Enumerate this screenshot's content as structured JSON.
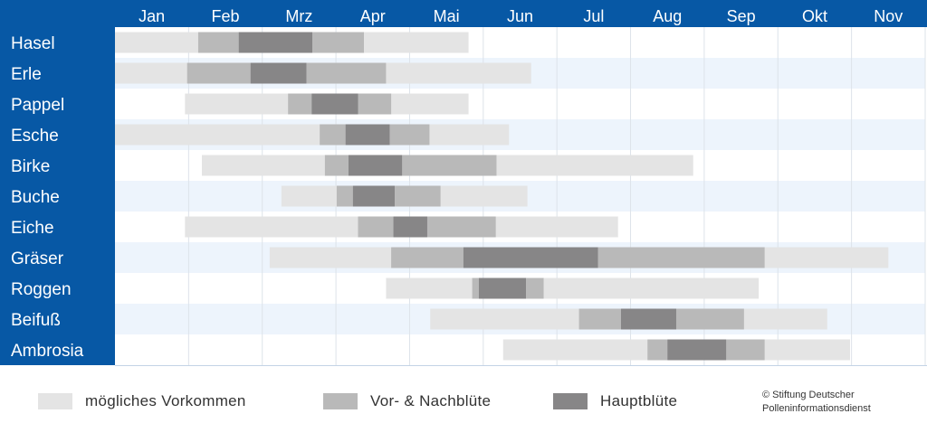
{
  "colors": {
    "header": "#0758a5",
    "row_alt": "#edf4fc",
    "grid": "#dde3ea",
    "possible": "#e4e4e4",
    "pre_post": "#b9b9b9",
    "main": "#878687"
  },
  "chart_data": {
    "type": "gantt",
    "months": [
      "Jan",
      "Feb",
      "Mrz",
      "Apr",
      "Mai",
      "Jun",
      "Jul",
      "Aug",
      "Sep",
      "Okt",
      "Nov"
    ],
    "value_unit": "months from start of January",
    "rows": [
      {
        "label": "Hasel",
        "segments": [
          {
            "type": "possible",
            "start": 0.0,
            "end": 4.8
          },
          {
            "type": "pre_post",
            "start": 1.13,
            "end": 1.68
          },
          {
            "type": "main",
            "start": 1.68,
            "end": 2.68
          },
          {
            "type": "pre_post",
            "start": 2.68,
            "end": 3.38
          }
        ]
      },
      {
        "label": "Erle",
        "segments": [
          {
            "type": "possible",
            "start": 0.0,
            "end": 5.65
          },
          {
            "type": "pre_post",
            "start": 0.98,
            "end": 1.84
          },
          {
            "type": "main",
            "start": 1.84,
            "end": 2.6
          },
          {
            "type": "pre_post",
            "start": 2.6,
            "end": 3.68
          }
        ]
      },
      {
        "label": "Pappel",
        "segments": [
          {
            "type": "possible",
            "start": 0.95,
            "end": 4.8
          },
          {
            "type": "pre_post",
            "start": 2.35,
            "end": 2.67
          },
          {
            "type": "main",
            "start": 2.67,
            "end": 3.3
          },
          {
            "type": "pre_post",
            "start": 3.3,
            "end": 3.75
          }
        ]
      },
      {
        "label": "Esche",
        "segments": [
          {
            "type": "possible",
            "start": 0.0,
            "end": 5.35
          },
          {
            "type": "pre_post",
            "start": 2.78,
            "end": 3.13
          },
          {
            "type": "main",
            "start": 3.13,
            "end": 3.73
          },
          {
            "type": "pre_post",
            "start": 3.73,
            "end": 4.27
          }
        ]
      },
      {
        "label": "Birke",
        "segments": [
          {
            "type": "possible",
            "start": 1.18,
            "end": 7.85
          },
          {
            "type": "pre_post",
            "start": 2.85,
            "end": 3.17
          },
          {
            "type": "main",
            "start": 3.17,
            "end": 3.9
          },
          {
            "type": "pre_post",
            "start": 3.9,
            "end": 5.18
          }
        ]
      },
      {
        "label": "Buche",
        "segments": [
          {
            "type": "possible",
            "start": 2.26,
            "end": 5.6
          },
          {
            "type": "pre_post",
            "start": 3.01,
            "end": 3.23
          },
          {
            "type": "main",
            "start": 3.23,
            "end": 3.8
          },
          {
            "type": "pre_post",
            "start": 3.8,
            "end": 4.42
          }
        ]
      },
      {
        "label": "Eiche",
        "segments": [
          {
            "type": "possible",
            "start": 0.95,
            "end": 6.83
          },
          {
            "type": "pre_post",
            "start": 3.3,
            "end": 3.78
          },
          {
            "type": "main",
            "start": 3.78,
            "end": 4.24
          },
          {
            "type": "pre_post",
            "start": 4.24,
            "end": 5.17
          }
        ]
      },
      {
        "label": "Gräser",
        "segments": [
          {
            "type": "possible",
            "start": 2.1,
            "end": 10.5
          },
          {
            "type": "pre_post",
            "start": 3.75,
            "end": 4.73
          },
          {
            "type": "main",
            "start": 4.73,
            "end": 6.56
          },
          {
            "type": "pre_post",
            "start": 6.56,
            "end": 8.82
          }
        ]
      },
      {
        "label": "Roggen",
        "segments": [
          {
            "type": "possible",
            "start": 3.68,
            "end": 8.74
          },
          {
            "type": "pre_post",
            "start": 4.85,
            "end": 4.94
          },
          {
            "type": "main",
            "start": 4.94,
            "end": 5.58
          },
          {
            "type": "pre_post",
            "start": 5.58,
            "end": 5.82
          }
        ]
      },
      {
        "label": "Beifuß",
        "segments": [
          {
            "type": "possible",
            "start": 4.28,
            "end": 9.67
          },
          {
            "type": "pre_post",
            "start": 6.3,
            "end": 6.87
          },
          {
            "type": "main",
            "start": 6.87,
            "end": 7.62
          },
          {
            "type": "pre_post",
            "start": 7.62,
            "end": 8.54
          }
        ]
      },
      {
        "label": "Ambrosia",
        "segments": [
          {
            "type": "possible",
            "start": 5.27,
            "end": 9.98
          },
          {
            "type": "pre_post",
            "start": 7.23,
            "end": 7.5
          },
          {
            "type": "main",
            "start": 7.5,
            "end": 8.3
          },
          {
            "type": "pre_post",
            "start": 8.3,
            "end": 8.82
          }
        ]
      }
    ],
    "legend": [
      {
        "type": "possible",
        "label": "mögliches Vorkommen"
      },
      {
        "type": "pre_post",
        "label": "Vor- & Nachblüte"
      },
      {
        "type": "main",
        "label": "Hauptblüte"
      }
    ],
    "grid": true,
    "legend_position": "bottom"
  },
  "credit": {
    "line1": "© Stiftung Deutscher",
    "line2": "Polleninformationsdienst"
  }
}
